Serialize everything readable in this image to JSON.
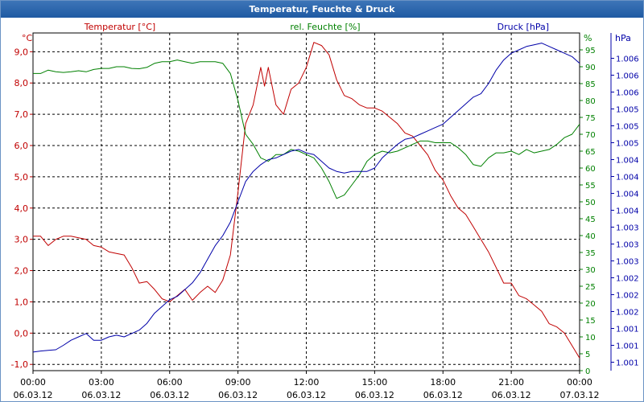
{
  "window": {
    "title": "Temperatur, Feuchte & Druck"
  },
  "colors": {
    "temperature": "#c00000",
    "humidity": "#008000",
    "pressure": "#0000a8",
    "grid": "#000000"
  },
  "chart_data": {
    "type": "line",
    "title": "Temperatur, Feuchte & Druck",
    "grid": true,
    "x": {
      "range": [
        "06.03.12 00:00",
        "07.03.12 00:00"
      ],
      "ticks": [
        {
          "time": "00:00",
          "date": "06.03.12"
        },
        {
          "time": "03:00",
          "date": "06.03.12"
        },
        {
          "time": "06:00",
          "date": "06.03.12"
        },
        {
          "time": "09:00",
          "date": "06.03.12"
        },
        {
          "time": "12:00",
          "date": "06.03.12"
        },
        {
          "time": "15:00",
          "date": "06.03.12"
        },
        {
          "time": "18:00",
          "date": "06.03.12"
        },
        {
          "time": "21:00",
          "date": "06.03.12"
        },
        {
          "time": "00:00",
          "date": "07.03.12"
        }
      ]
    },
    "axes": {
      "temperature": {
        "label": "Temperatur [°C]",
        "unit": "°C",
        "range": [
          -1.2,
          9.6
        ],
        "ticks": [
          {
            "v": -1,
            "t": "-1,0"
          },
          {
            "v": 0,
            "t": "0,0"
          },
          {
            "v": 1,
            "t": "1,0"
          },
          {
            "v": 2,
            "t": "2,0"
          },
          {
            "v": 3,
            "t": "3,0"
          },
          {
            "v": 4,
            "t": "4,0"
          },
          {
            "v": 5,
            "t": "5,0"
          },
          {
            "v": 6,
            "t": "6,0"
          },
          {
            "v": 7,
            "t": "7,0"
          },
          {
            "v": 8,
            "t": "8,0"
          },
          {
            "v": 9,
            "t": "9,0"
          }
        ]
      },
      "humidity": {
        "label": "rel. Feuchte [%]",
        "unit": "%",
        "range": [
          0,
          100
        ],
        "ticks": [
          {
            "v": 0,
            "t": "0"
          },
          {
            "v": 5,
            "t": "5"
          },
          {
            "v": 10,
            "t": "10"
          },
          {
            "v": 15,
            "t": "15"
          },
          {
            "v": 20,
            "t": "20"
          },
          {
            "v": 25,
            "t": "25"
          },
          {
            "v": 30,
            "t": "30"
          },
          {
            "v": 35,
            "t": "35"
          },
          {
            "v": 40,
            "t": "40"
          },
          {
            "v": 45,
            "t": "45"
          },
          {
            "v": 50,
            "t": "50"
          },
          {
            "v": 55,
            "t": "55"
          },
          {
            "v": 60,
            "t": "60"
          },
          {
            "v": 65,
            "t": "65"
          },
          {
            "v": 70,
            "t": "70"
          },
          {
            "v": 75,
            "t": "75"
          },
          {
            "v": 80,
            "t": "80"
          },
          {
            "v": 85,
            "t": "85"
          },
          {
            "v": 90,
            "t": "90"
          },
          {
            "v": 95,
            "t": "95"
          }
        ]
      },
      "pressure": {
        "label": "Druck [hPa]",
        "unit": "hPa",
        "ticks": [
          {
            "v": 2.5,
            "t": "1.001"
          },
          {
            "v": 7.5,
            "t": "1.001"
          },
          {
            "v": 12.5,
            "t": "1.001"
          },
          {
            "v": 17.5,
            "t": "1.002"
          },
          {
            "v": 22.5,
            "t": "1.002"
          },
          {
            "v": 27.5,
            "t": "1.002"
          },
          {
            "v": 32.5,
            "t": "1.003"
          },
          {
            "v": 37.5,
            "t": "1.003"
          },
          {
            "v": 42.5,
            "t": "1.003"
          },
          {
            "v": 47.5,
            "t": "1.004"
          },
          {
            "v": 52.5,
            "t": "1.004"
          },
          {
            "v": 57.5,
            "t": "1.004"
          },
          {
            "v": 62.5,
            "t": "1.004"
          },
          {
            "v": 67.5,
            "t": "1.005"
          },
          {
            "v": 72.5,
            "t": "1.005"
          },
          {
            "v": 77.5,
            "t": "1.005"
          },
          {
            "v": 82.5,
            "t": "1.006"
          },
          {
            "v": 87.5,
            "t": "1.006"
          },
          {
            "v": 92.5,
            "t": "1.006"
          }
        ]
      }
    },
    "series": [
      {
        "name": "Temperatur [°C]",
        "axis": "temperature",
        "points": [
          [
            "00:00",
            3.1
          ],
          [
            "00:20",
            3.1
          ],
          [
            "00:40",
            2.8
          ],
          [
            "01:00",
            3.0
          ],
          [
            "01:20",
            3.1
          ],
          [
            "01:40",
            3.1
          ],
          [
            "02:00",
            3.05
          ],
          [
            "02:20",
            3.0
          ],
          [
            "02:40",
            2.8
          ],
          [
            "03:00",
            2.75
          ],
          [
            "03:20",
            2.6
          ],
          [
            "03:40",
            2.55
          ],
          [
            "04:00",
            2.5
          ],
          [
            "04:20",
            2.1
          ],
          [
            "04:40",
            1.6
          ],
          [
            "05:00",
            1.65
          ],
          [
            "05:20",
            1.4
          ],
          [
            "05:40",
            1.1
          ],
          [
            "06:00",
            1.0
          ],
          [
            "06:20",
            1.2
          ],
          [
            "06:40",
            1.4
          ],
          [
            "07:00",
            1.05
          ],
          [
            "07:20",
            1.3
          ],
          [
            "07:40",
            1.5
          ],
          [
            "08:00",
            1.3
          ],
          [
            "08:20",
            1.7
          ],
          [
            "08:40",
            2.5
          ],
          [
            "09:00",
            4.5
          ],
          [
            "09:20",
            6.7
          ],
          [
            "09:40",
            7.3
          ],
          [
            "10:00",
            8.5
          ],
          [
            "10:10",
            7.9
          ],
          [
            "10:20",
            8.5
          ],
          [
            "10:40",
            7.3
          ],
          [
            "11:00",
            7.0
          ],
          [
            "11:20",
            7.8
          ],
          [
            "11:40",
            8.0
          ],
          [
            "12:00",
            8.5
          ],
          [
            "12:20",
            9.3
          ],
          [
            "12:40",
            9.2
          ],
          [
            "13:00",
            8.9
          ],
          [
            "13:20",
            8.1
          ],
          [
            "13:40",
            7.6
          ],
          [
            "14:00",
            7.5
          ],
          [
            "14:20",
            7.3
          ],
          [
            "14:40",
            7.2
          ],
          [
            "15:00",
            7.2
          ],
          [
            "15:20",
            7.1
          ],
          [
            "15:40",
            6.9
          ],
          [
            "16:00",
            6.7
          ],
          [
            "16:20",
            6.4
          ],
          [
            "16:40",
            6.3
          ],
          [
            "17:00",
            6.0
          ],
          [
            "17:20",
            5.7
          ],
          [
            "17:40",
            5.2
          ],
          [
            "18:00",
            4.9
          ],
          [
            "18:20",
            4.4
          ],
          [
            "18:40",
            4.0
          ],
          [
            "19:00",
            3.8
          ],
          [
            "19:20",
            3.4
          ],
          [
            "19:40",
            3.0
          ],
          [
            "20:00",
            2.6
          ],
          [
            "20:20",
            2.1
          ],
          [
            "20:40",
            1.6
          ],
          [
            "21:00",
            1.6
          ],
          [
            "21:20",
            1.2
          ],
          [
            "21:40",
            1.1
          ],
          [
            "22:00",
            0.9
          ],
          [
            "22:20",
            0.7
          ],
          [
            "22:40",
            0.3
          ],
          [
            "23:00",
            0.2
          ],
          [
            "23:20",
            0.0
          ],
          [
            "23:40",
            -0.4
          ],
          [
            "24:00",
            -0.8
          ]
        ]
      },
      {
        "name": "rel. Feuchte [%]",
        "axis": "humidity",
        "points": [
          [
            "00:00",
            88
          ],
          [
            "00:20",
            88
          ],
          [
            "00:40",
            89
          ],
          [
            "01:00",
            88.5
          ],
          [
            "01:20",
            88.3
          ],
          [
            "01:40",
            88.5
          ],
          [
            "02:00",
            88.8
          ],
          [
            "02:20",
            88.5
          ],
          [
            "02:40",
            89.2
          ],
          [
            "03:00",
            89.5
          ],
          [
            "03:20",
            89.5
          ],
          [
            "03:40",
            90
          ],
          [
            "04:00",
            90
          ],
          [
            "04:20",
            89.5
          ],
          [
            "04:40",
            89.4
          ],
          [
            "05:00",
            89.8
          ],
          [
            "05:20",
            91
          ],
          [
            "05:40",
            91.5
          ],
          [
            "06:00",
            91.5
          ],
          [
            "06:20",
            92
          ],
          [
            "06:40",
            91.5
          ],
          [
            "07:00",
            91
          ],
          [
            "07:20",
            91.5
          ],
          [
            "07:40",
            91.5
          ],
          [
            "08:00",
            91.5
          ],
          [
            "08:20",
            91
          ],
          [
            "08:40",
            88
          ],
          [
            "09:00",
            80
          ],
          [
            "09:20",
            70
          ],
          [
            "09:40",
            67
          ],
          [
            "10:00",
            63
          ],
          [
            "10:20",
            62
          ],
          [
            "10:40",
            64
          ],
          [
            "11:00",
            64
          ],
          [
            "11:20",
            65.5
          ],
          [
            "11:40",
            65
          ],
          [
            "12:00",
            64
          ],
          [
            "12:20",
            63
          ],
          [
            "12:40",
            60
          ],
          [
            "13:00",
            56
          ],
          [
            "13:20",
            51
          ],
          [
            "13:40",
            52
          ],
          [
            "14:00",
            55
          ],
          [
            "14:20",
            58
          ],
          [
            "14:40",
            62
          ],
          [
            "15:00",
            64
          ],
          [
            "15:20",
            65
          ],
          [
            "15:40",
            64.5
          ],
          [
            "16:00",
            65
          ],
          [
            "16:20",
            66
          ],
          [
            "16:40",
            67
          ],
          [
            "17:00",
            68
          ],
          [
            "17:20",
            68
          ],
          [
            "17:40",
            67.5
          ],
          [
            "18:00",
            67.5
          ],
          [
            "18:20",
            67.5
          ],
          [
            "18:40",
            66
          ],
          [
            "19:00",
            64
          ],
          [
            "19:20",
            61
          ],
          [
            "19:40",
            60.5
          ],
          [
            "20:00",
            63
          ],
          [
            "20:20",
            64.5
          ],
          [
            "20:40",
            64.5
          ],
          [
            "21:00",
            65
          ],
          [
            "21:20",
            64
          ],
          [
            "21:40",
            65.5
          ],
          [
            "22:00",
            64.5
          ],
          [
            "22:20",
            65
          ],
          [
            "22:40",
            65.5
          ],
          [
            "23:00",
            67
          ],
          [
            "23:20",
            69
          ],
          [
            "23:40",
            70
          ],
          [
            "24:00",
            73
          ]
        ]
      },
      {
        "name": "Druck [hPa]",
        "axis": "humidity",
        "points": [
          [
            "00:00",
            5.5
          ],
          [
            "00:20",
            5.8
          ],
          [
            "00:40",
            6
          ],
          [
            "01:00",
            6.2
          ],
          [
            "01:20",
            7.5
          ],
          [
            "01:40",
            9
          ],
          [
            "02:00",
            10
          ],
          [
            "02:20",
            11
          ],
          [
            "02:40",
            9
          ],
          [
            "03:00",
            9
          ],
          [
            "03:20",
            10
          ],
          [
            "03:40",
            10.5
          ],
          [
            "04:00",
            10
          ],
          [
            "04:20",
            11
          ],
          [
            "04:40",
            12
          ],
          [
            "05:00",
            14
          ],
          [
            "05:20",
            17
          ],
          [
            "05:40",
            19
          ],
          [
            "06:00",
            21
          ],
          [
            "06:20",
            22
          ],
          [
            "06:40",
            24
          ],
          [
            "07:00",
            26
          ],
          [
            "07:20",
            29
          ],
          [
            "07:40",
            33
          ],
          [
            "08:00",
            37
          ],
          [
            "08:20",
            40
          ],
          [
            "08:40",
            44
          ],
          [
            "09:00",
            50
          ],
          [
            "09:20",
            56
          ],
          [
            "09:40",
            59
          ],
          [
            "10:00",
            61
          ],
          [
            "10:20",
            62.5
          ],
          [
            "10:40",
            63
          ],
          [
            "11:00",
            64
          ],
          [
            "11:20",
            65
          ],
          [
            "11:40",
            65.5
          ],
          [
            "12:00",
            64.5
          ],
          [
            "12:20",
            64
          ],
          [
            "12:40",
            62
          ],
          [
            "13:00",
            60
          ],
          [
            "13:20",
            59
          ],
          [
            "13:40",
            58.5
          ],
          [
            "14:00",
            59
          ],
          [
            "14:20",
            59
          ],
          [
            "14:40",
            59
          ],
          [
            "15:00",
            60
          ],
          [
            "15:20",
            63
          ],
          [
            "15:40",
            65
          ],
          [
            "16:00",
            67
          ],
          [
            "16:20",
            68.5
          ],
          [
            "16:40",
            69
          ],
          [
            "17:00",
            70
          ],
          [
            "17:20",
            71
          ],
          [
            "17:40",
            72
          ],
          [
            "18:00",
            73
          ],
          [
            "18:20",
            75
          ],
          [
            "18:40",
            77
          ],
          [
            "19:00",
            79
          ],
          [
            "19:20",
            81
          ],
          [
            "19:40",
            82
          ],
          [
            "20:00",
            85
          ],
          [
            "20:20",
            89
          ],
          [
            "20:40",
            92
          ],
          [
            "21:00",
            94
          ],
          [
            "21:20",
            95
          ],
          [
            "21:40",
            96
          ],
          [
            "22:00",
            96.5
          ],
          [
            "22:20",
            97
          ],
          [
            "22:40",
            96
          ],
          [
            "23:00",
            95
          ],
          [
            "23:20",
            94
          ],
          [
            "23:40",
            93
          ],
          [
            "24:00",
            91
          ]
        ]
      }
    ]
  }
}
